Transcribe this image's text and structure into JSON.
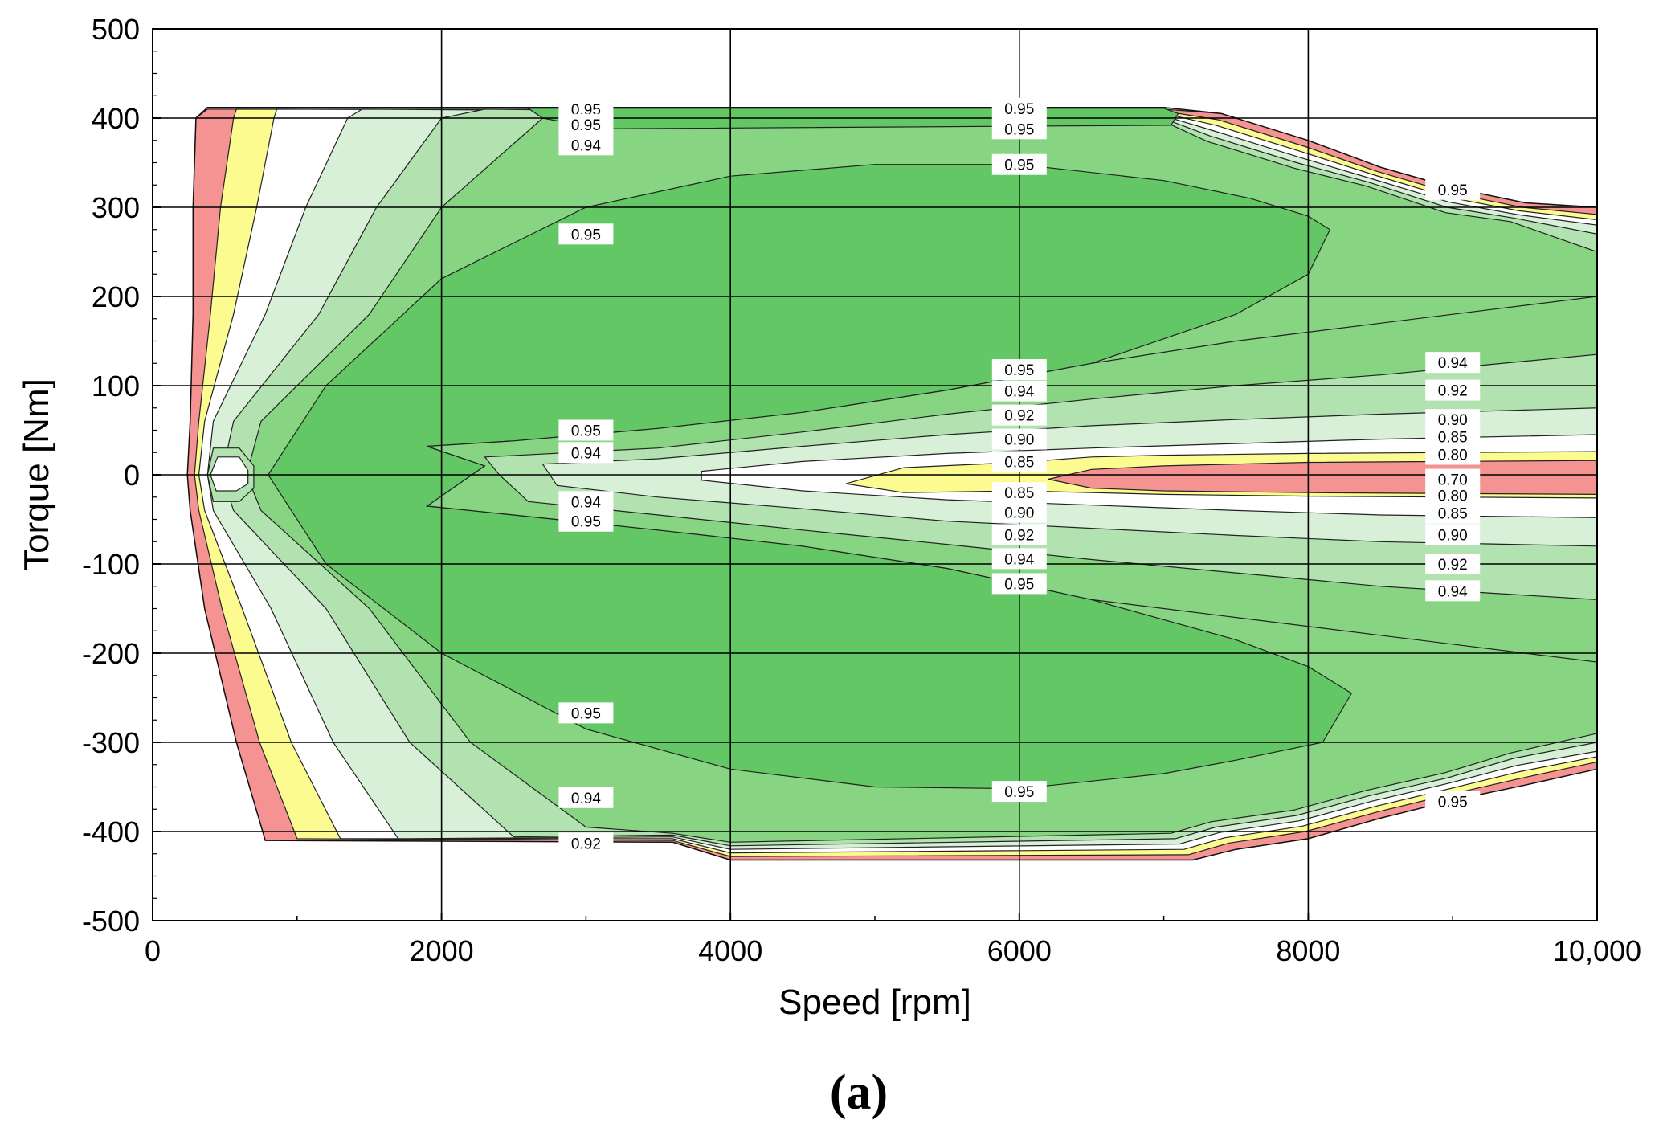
{
  "chart_data": {
    "type": "contour",
    "title": "",
    "xlabel": "Speed [rpm]",
    "ylabel": "Torque [Nm]",
    "xlim": [
      0,
      10000
    ],
    "ylim": [
      -500,
      500
    ],
    "x_ticks": [
      0,
      2000,
      4000,
      6000,
      8000,
      10000
    ],
    "x_tick_labels": [
      "0",
      "2000",
      "4000",
      "6000",
      "8000",
      "10,000"
    ],
    "y_ticks": [
      500,
      400,
      300,
      200,
      100,
      0,
      -100,
      -200,
      -300,
      -400,
      -500
    ],
    "y_tick_labels": [
      "500",
      "400",
      "300",
      "200",
      "100",
      "0",
      "-100",
      "-200",
      "-300",
      "-400",
      "-500"
    ],
    "grid": true,
    "contour_levels": [
      0.7,
      0.8,
      0.85,
      0.9,
      0.92,
      0.94,
      0.95
    ],
    "level_colors": {
      "0.70-0.80": "#f59393",
      "0.80-0.85": "#fbfb8f",
      "0.85-0.90": "#ffffff",
      "0.90-0.92": "#d8f0d8",
      "0.92-0.94": "#b2e2b0",
      "0.94-0.95": "#87d583",
      "above-0.95": "#62c764"
    },
    "operating_envelope": {
      "max_torque_nm": 410,
      "min_torque_nm": -410,
      "max_torque_at_10000rpm_nm": 300,
      "min_torque_at_10000rpm_nm": -330
    },
    "contour_labels": [
      {
        "text": "0.95",
        "speed": 3000,
        "torque": 410
      },
      {
        "text": "0.95",
        "speed": 3000,
        "torque": 393
      },
      {
        "text": "0.94",
        "speed": 3000,
        "torque": 370
      },
      {
        "text": "0.95",
        "speed": 3000,
        "torque": 270
      },
      {
        "text": "0.95",
        "speed": 3000,
        "torque": 50
      },
      {
        "text": "0.94",
        "speed": 3000,
        "torque": 25
      },
      {
        "text": "0.94",
        "speed": 3000,
        "torque": -30
      },
      {
        "text": "0.95",
        "speed": 3000,
        "torque": -52
      },
      {
        "text": "0.95",
        "speed": 3000,
        "torque": -267
      },
      {
        "text": "0.94",
        "speed": 3000,
        "torque": -362
      },
      {
        "text": "0.92",
        "speed": 3000,
        "torque": -413
      },
      {
        "text": "0.95",
        "speed": 6000,
        "torque": 411
      },
      {
        "text": "0.95",
        "speed": 6000,
        "torque": 388
      },
      {
        "text": "0.95",
        "speed": 6000,
        "torque": 348
      },
      {
        "text": "0.95",
        "speed": 6000,
        "torque": 118
      },
      {
        "text": "0.94",
        "speed": 6000,
        "torque": 94
      },
      {
        "text": "0.92",
        "speed": 6000,
        "torque": 67
      },
      {
        "text": "0.90",
        "speed": 6000,
        "torque": 40
      },
      {
        "text": "0.85",
        "speed": 6000,
        "torque": 15
      },
      {
        "text": "0.85",
        "speed": 6000,
        "torque": -20
      },
      {
        "text": "0.90",
        "speed": 6000,
        "torque": -42
      },
      {
        "text": "0.92",
        "speed": 6000,
        "torque": -67
      },
      {
        "text": "0.94",
        "speed": 6000,
        "torque": -94
      },
      {
        "text": "0.95",
        "speed": 6000,
        "torque": -122
      },
      {
        "text": "0.95",
        "speed": 6000,
        "torque": -355
      },
      {
        "text": "0.95",
        "speed": 9000,
        "torque": 320
      },
      {
        "text": "0.94",
        "speed": 9000,
        "torque": 126
      },
      {
        "text": "0.92",
        "speed": 9000,
        "torque": 95
      },
      {
        "text": "0.90",
        "speed": 9000,
        "torque": 62
      },
      {
        "text": "0.85",
        "speed": 9000,
        "torque": 43
      },
      {
        "text": "0.80",
        "speed": 9000,
        "torque": 23
      },
      {
        "text": "0.70",
        "speed": 9000,
        "torque": -5
      },
      {
        "text": "0.80",
        "speed": 9000,
        "torque": -23
      },
      {
        "text": "0.85",
        "speed": 9000,
        "torque": -43
      },
      {
        "text": "0.90",
        "speed": 9000,
        "torque": -67
      },
      {
        "text": "0.92",
        "speed": 9000,
        "torque": -100
      },
      {
        "text": "0.94",
        "speed": 9000,
        "torque": -130
      },
      {
        "text": "0.95",
        "speed": 9000,
        "torque": -366
      }
    ],
    "panel_label": "(a)"
  }
}
